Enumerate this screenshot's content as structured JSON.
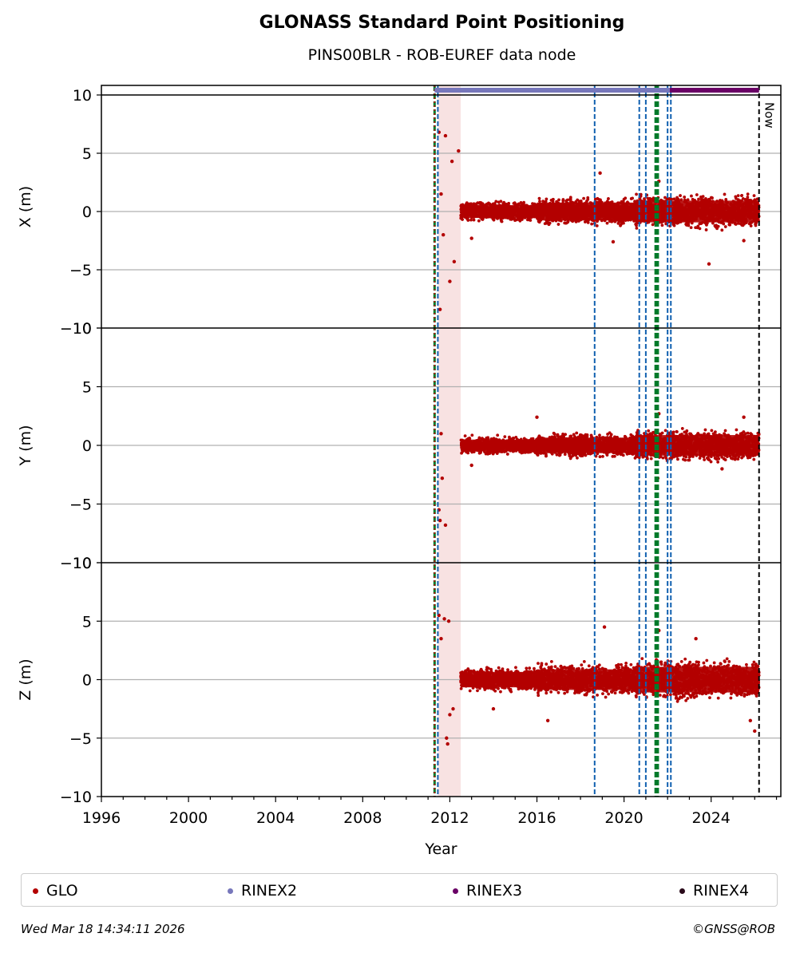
{
  "header": {
    "title": "GLONASS Standard Point Positioning",
    "subtitle": "PINS00BLR - ROB-EUREF data node"
  },
  "legend": {
    "items": [
      {
        "label": "GLO",
        "color": "#b30000"
      },
      {
        "label": "RINEX2",
        "color": "#7777bb"
      },
      {
        "label": "RINEX3",
        "color": "#6a0066"
      },
      {
        "label": "RINEX4",
        "color": "#2a0a1a"
      }
    ]
  },
  "footer": {
    "timestamp": "Wed Mar 18 14:34:11 2026",
    "copyright": "©GNSS@ROB"
  },
  "chart_data": {
    "type": "scatter",
    "xlabel": "Year",
    "xlim": [
      1996,
      2027.2
    ],
    "x_ticks": [
      1996,
      2000,
      2004,
      2008,
      2012,
      2016,
      2020,
      2024
    ],
    "y_ticks": [
      -10,
      -5,
      0,
      5,
      10
    ],
    "grid": "horizontal",
    "legend_placement": "bottom",
    "now_label": "Now",
    "now_year": 2026.2,
    "colors": {
      "points": "#b30000",
      "rinex2": "#7777bb",
      "rinex3": "#6a0066",
      "equipment_change": "#1060b0",
      "antenna_change": "#007a2a",
      "now_line": "#000000",
      "outage_band": "#f5d5d5"
    },
    "equipment_changes": [
      2011.45,
      2018.65,
      2020.7,
      2021.0,
      2022.0,
      2022.15
    ],
    "antenna_changes": [
      2011.3,
      2021.45,
      2021.55
    ],
    "rinex2_span": [
      2011.3,
      2022.1
    ],
    "rinex3_span": [
      2022.1,
      2026.2
    ],
    "panels": [
      {
        "ylabel": "X (m)",
        "ylim": [
          -10,
          10
        ],
        "band_segments": [
          [
            2012.5,
            2016.0,
            1.0
          ],
          [
            2016.0,
            2020.5,
            1.4
          ],
          [
            2020.5,
            2026.2,
            1.7
          ]
        ],
        "outliers": [
          [
            2011.5,
            6.8
          ],
          [
            2011.55,
            -8.4
          ],
          [
            2011.6,
            1.5
          ],
          [
            2011.7,
            -2.0
          ],
          [
            2011.8,
            6.5
          ],
          [
            2012.0,
            -6.0
          ],
          [
            2012.2,
            -4.3
          ],
          [
            2012.1,
            4.3
          ],
          [
            2012.4,
            5.2
          ],
          [
            2018.9,
            3.3
          ],
          [
            2021.6,
            2.6
          ],
          [
            2023.9,
            -4.5
          ],
          [
            2013.0,
            -2.3
          ],
          [
            2019.5,
            -2.6
          ],
          [
            2025.5,
            -2.5
          ]
        ]
      },
      {
        "ylabel": "Y (m)",
        "ylim": [
          -10,
          10
        ],
        "band_segments": [
          [
            2012.5,
            2016.0,
            0.9
          ],
          [
            2016.0,
            2020.5,
            1.2
          ],
          [
            2020.5,
            2026.2,
            1.6
          ]
        ],
        "outliers": [
          [
            2011.5,
            -5.5
          ],
          [
            2011.55,
            -6.4
          ],
          [
            2011.6,
            1.0
          ],
          [
            2011.8,
            -6.8
          ],
          [
            2011.65,
            -2.8
          ],
          [
            2016.0,
            2.4
          ],
          [
            2021.6,
            2.7
          ],
          [
            2025.5,
            2.4
          ],
          [
            2021.55,
            -2.8
          ],
          [
            2013.0,
            -1.7
          ],
          [
            2024.5,
            -2.0
          ]
        ]
      },
      {
        "ylabel": "Z (m)",
        "ylim": [
          -10,
          10
        ],
        "band_segments": [
          [
            2012.5,
            2016.0,
            1.2
          ],
          [
            2016.0,
            2020.5,
            1.6
          ],
          [
            2020.5,
            2026.2,
            2.0
          ]
        ],
        "outliers": [
          [
            2011.5,
            5.5
          ],
          [
            2011.6,
            3.5
          ],
          [
            2011.75,
            5.2
          ],
          [
            2011.95,
            5.0
          ],
          [
            2012.0,
            -3.0
          ],
          [
            2012.15,
            -2.5
          ],
          [
            2011.85,
            -5.0
          ],
          [
            2011.9,
            -5.5
          ],
          [
            2016.5,
            -3.5
          ],
          [
            2019.1,
            4.5
          ],
          [
            2021.6,
            4.2
          ],
          [
            2023.3,
            3.5
          ],
          [
            2026.0,
            -4.4
          ],
          [
            2025.8,
            -3.5
          ],
          [
            2014.0,
            -2.5
          ]
        ]
      }
    ]
  }
}
